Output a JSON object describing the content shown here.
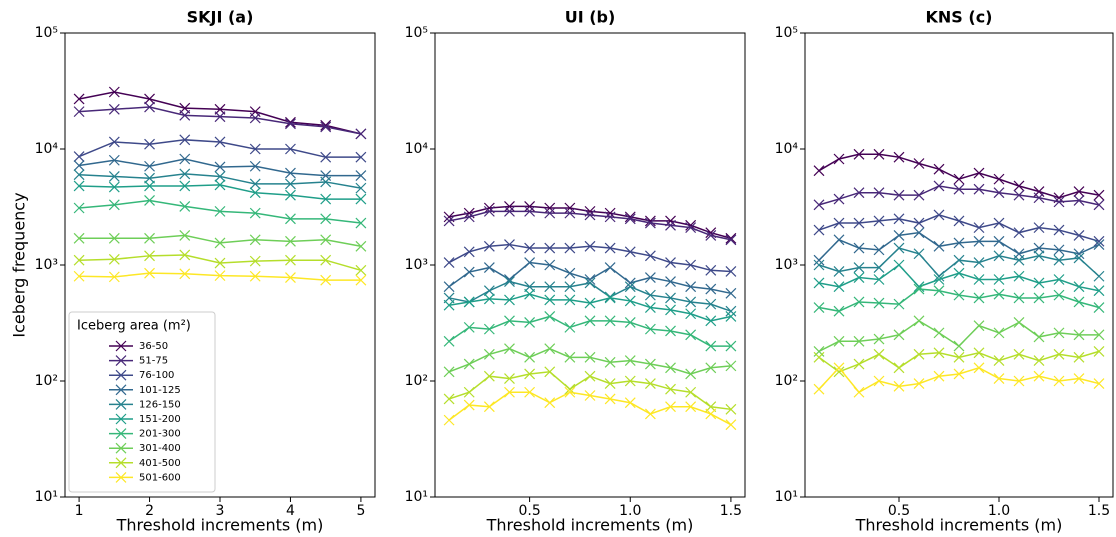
{
  "chart_data": [
    {
      "type": "line",
      "title": "SKJI (a)",
      "xlabel": "Threshold increments (m)",
      "ylabel": "Iceberg frequency",
      "yscale": "log",
      "marker": "x",
      "xlim": [
        0.8,
        5.2
      ],
      "xticks": [
        1,
        2,
        3,
        4,
        5
      ],
      "ylim": [
        10,
        100000
      ],
      "yticks": [
        {
          "value": 10,
          "label": "10¹"
        },
        {
          "value": 100,
          "label": "10²"
        },
        {
          "value": 1000,
          "label": "10³"
        },
        {
          "value": 10000,
          "label": "10⁴"
        },
        {
          "value": 100000,
          "label": "10⁵"
        }
      ],
      "legend": {
        "title": "Iceberg area (m²)",
        "loc": "lower left"
      },
      "x": [
        1,
        1.5,
        2,
        2.5,
        3,
        3.5,
        4,
        4.5,
        5
      ],
      "series": [
        {
          "name": "36-50",
          "color": "#440154",
          "values": [
            27000,
            31000,
            27000,
            22500,
            22000,
            21000,
            17000,
            16000,
            13500
          ]
        },
        {
          "name": "51-75",
          "color": "#482878",
          "values": [
            21000,
            22000,
            23000,
            19500,
            19000,
            18500,
            16500,
            15500,
            13500
          ]
        },
        {
          "name": "76-100",
          "color": "#3e4989",
          "values": [
            8600,
            11500,
            11000,
            12000,
            11500,
            10000,
            10000,
            8500,
            8500
          ]
        },
        {
          "name": "101-125",
          "color": "#31688e",
          "values": [
            7200,
            8000,
            7100,
            8200,
            7000,
            7100,
            6200,
            5900,
            5900
          ]
        },
        {
          "name": "126-150",
          "color": "#26828e",
          "values": [
            6000,
            5800,
            5600,
            6100,
            5800,
            5000,
            5000,
            5200,
            4600
          ]
        },
        {
          "name": "151-200",
          "color": "#1f9e89",
          "values": [
            4800,
            4700,
            4800,
            4800,
            4900,
            4200,
            4000,
            3700,
            3700
          ]
        },
        {
          "name": "201-300",
          "color": "#35b779",
          "values": [
            3100,
            3300,
            3600,
            3200,
            2900,
            2800,
            2500,
            2500,
            2300
          ]
        },
        {
          "name": "301-400",
          "color": "#6ece58",
          "values": [
            1700,
            1700,
            1700,
            1800,
            1550,
            1650,
            1600,
            1650,
            1450
          ]
        },
        {
          "name": "401-500",
          "color": "#b5de2b",
          "values": [
            1100,
            1120,
            1200,
            1220,
            1040,
            1080,
            1100,
            1100,
            900
          ]
        },
        {
          "name": "501-600",
          "color": "#fde725",
          "values": [
            800,
            790,
            850,
            840,
            810,
            800,
            780,
            740,
            740
          ]
        }
      ]
    },
    {
      "type": "line",
      "title": "UI (b)",
      "xlabel": "Threshold increments (m)",
      "yscale": "log",
      "marker": "x",
      "xlim": [
        0.03,
        1.57
      ],
      "xticks": [
        0.5,
        {
          "value": 1,
          "label": "1.0"
        },
        1.5
      ],
      "ylim": [
        10,
        100000
      ],
      "yticks": [
        {
          "value": 10,
          "label": "10¹"
        },
        {
          "value": 100,
          "label": "10²"
        },
        {
          "value": 1000,
          "label": "10³"
        },
        {
          "value": 10000,
          "label": "10⁴"
        },
        {
          "value": 100000,
          "label": "10⁵"
        }
      ],
      "x": [
        0.1,
        0.2,
        0.3,
        0.4,
        0.5,
        0.6,
        0.7,
        0.8,
        0.9,
        1.0,
        1.1,
        1.2,
        1.3,
        1.4,
        1.5
      ],
      "series": [
        {
          "color": "#440154",
          "values": [
            2600,
            2800,
            3100,
            3200,
            3200,
            3100,
            3100,
            2900,
            2800,
            2600,
            2400,
            2400,
            2200,
            1900,
            1700
          ]
        },
        {
          "color": "#482878",
          "values": [
            2400,
            2600,
            2900,
            2900,
            2900,
            2800,
            2800,
            2700,
            2600,
            2500,
            2300,
            2200,
            2100,
            1800,
            1650
          ]
        },
        {
          "color": "#3e4989",
          "values": [
            1050,
            1300,
            1450,
            1500,
            1400,
            1400,
            1400,
            1450,
            1400,
            1300,
            1200,
            1050,
            1000,
            900,
            880
          ]
        },
        {
          "color": "#31688e",
          "values": [
            650,
            870,
            950,
            750,
            1050,
            1000,
            850,
            750,
            950,
            700,
            780,
            720,
            650,
            620,
            570
          ]
        },
        {
          "color": "#26828e",
          "values": [
            520,
            480,
            600,
            720,
            650,
            650,
            650,
            700,
            530,
            650,
            550,
            520,
            480,
            460,
            400
          ]
        },
        {
          "color": "#1f9e89",
          "values": [
            450,
            480,
            510,
            500,
            560,
            500,
            500,
            470,
            520,
            490,
            430,
            410,
            380,
            330,
            360
          ]
        },
        {
          "color": "#35b779",
          "values": [
            220,
            290,
            280,
            330,
            320,
            360,
            290,
            330,
            330,
            320,
            280,
            270,
            250,
            200,
            200
          ]
        },
        {
          "color": "#6ece58",
          "values": [
            120,
            140,
            170,
            190,
            160,
            190,
            160,
            160,
            145,
            150,
            140,
            130,
            115,
            130,
            135
          ]
        },
        {
          "color": "#b5de2b",
          "values": [
            70,
            80,
            110,
            105,
            115,
            120,
            85,
            110,
            95,
            100,
            95,
            85,
            80,
            60,
            57
          ]
        },
        {
          "color": "#fde725",
          "values": [
            46,
            62,
            60,
            80,
            80,
            65,
            80,
            75,
            70,
            65,
            52,
            60,
            60,
            52,
            42
          ]
        }
      ]
    },
    {
      "type": "line",
      "title": "KNS (c)",
      "xlabel": "Threshold increments (m)",
      "yscale": "log",
      "marker": "x",
      "xlim": [
        0.03,
        1.57
      ],
      "xticks": [
        0.5,
        {
          "value": 1,
          "label": "1.0"
        },
        1.5
      ],
      "ylim": [
        10,
        100000
      ],
      "yticks": [
        {
          "value": 10,
          "label": "10¹"
        },
        {
          "value": 100,
          "label": "10²"
        },
        {
          "value": 1000,
          "label": "10³"
        },
        {
          "value": 10000,
          "label": "10⁴"
        },
        {
          "value": 100000,
          "label": "10⁵"
        }
      ],
      "x": [
        0.1,
        0.2,
        0.3,
        0.4,
        0.5,
        0.6,
        0.7,
        0.8,
        0.9,
        1.0,
        1.1,
        1.2,
        1.3,
        1.4,
        1.5
      ],
      "series": [
        {
          "color": "#440154",
          "values": [
            6500,
            8200,
            9000,
            9000,
            8500,
            7500,
            6700,
            5500,
            6200,
            5500,
            4800,
            4300,
            3800,
            4300,
            4000
          ]
        },
        {
          "color": "#482878",
          "values": [
            3300,
            3700,
            4200,
            4200,
            4000,
            4000,
            4800,
            4500,
            4500,
            4200,
            4000,
            3800,
            3500,
            3600,
            3300
          ]
        },
        {
          "color": "#3e4989",
          "values": [
            2000,
            2300,
            2300,
            2400,
            2500,
            2300,
            2700,
            2400,
            2100,
            2300,
            1900,
            2100,
            2000,
            1800,
            1600
          ]
        },
        {
          "color": "#31688e",
          "values": [
            1100,
            1650,
            1400,
            1350,
            1800,
            1900,
            1450,
            1550,
            1600,
            1600,
            1250,
            1400,
            1350,
            1250,
            1500
          ]
        },
        {
          "color": "#26828e",
          "values": [
            1000,
            880,
            950,
            950,
            1400,
            1250,
            800,
            1100,
            1050,
            1200,
            1100,
            1200,
            1100,
            1150,
            800
          ]
        },
        {
          "color": "#1f9e89",
          "values": [
            700,
            650,
            780,
            750,
            1000,
            650,
            750,
            850,
            750,
            750,
            800,
            700,
            750,
            650,
            600
          ]
        },
        {
          "color": "#35b779",
          "values": [
            430,
            400,
            480,
            470,
            460,
            620,
            600,
            550,
            520,
            560,
            520,
            520,
            550,
            480,
            430
          ]
        },
        {
          "color": "#6ece58",
          "values": [
            180,
            220,
            220,
            230,
            250,
            330,
            260,
            200,
            300,
            260,
            320,
            240,
            260,
            250,
            250
          ]
        },
        {
          "color": "#b5de2b",
          "values": [
            160,
            120,
            140,
            170,
            130,
            170,
            175,
            160,
            175,
            150,
            170,
            150,
            170,
            160,
            180
          ]
        },
        {
          "color": "#fde725",
          "values": [
            85,
            130,
            80,
            100,
            90,
            95,
            110,
            115,
            130,
            105,
            100,
            110,
            100,
            105,
            95
          ]
        }
      ]
    }
  ]
}
